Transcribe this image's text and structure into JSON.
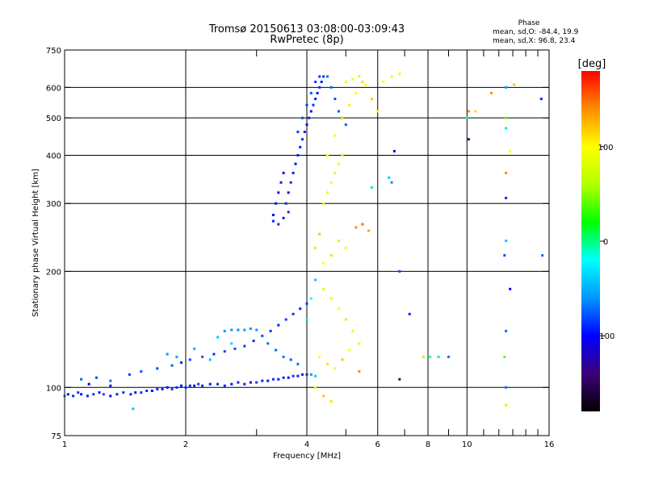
{
  "chart_data": {
    "type": "scatter",
    "title": "Tromsø 20150613 03:08:00-03:09:43",
    "subtitle": "RwPretec (8p)",
    "xlabel": "Frequency [MHz]",
    "ylabel": "Stationary phase Virtual Height [km]",
    "xscale": "log2",
    "yscale": "log",
    "xlim": [
      1,
      16
    ],
    "ylim": [
      75,
      750
    ],
    "xticks": [
      1,
      2,
      4,
      6,
      8,
      10,
      16
    ],
    "xgrid": [
      1,
      2,
      4,
      6,
      8,
      10,
      16
    ],
    "xminor": [
      3,
      5,
      7,
      9,
      11,
      12,
      13,
      14,
      15
    ],
    "yticks": [
      75,
      100,
      200,
      300,
      400,
      500,
      600,
      750
    ],
    "ygrid": [
      100,
      200,
      300,
      400,
      500,
      600
    ],
    "grid": true,
    "phase_stats": {
      "heading": "Phase",
      "line_o": "mean, sd,O: -84.4, 19.9",
      "line_x": "mean, sd,X:  96.8, 23.4"
    },
    "colorbar": {
      "label": "[deg]",
      "range": [
        -180,
        180
      ],
      "ticks": [
        -100,
        0,
        100
      ],
      "colors": [
        "#000000",
        "#3d007a",
        "#0000ff",
        "#0096ff",
        "#00ffff",
        "#00ff00",
        "#b4ff00",
        "#ffff00",
        "#ff8c00",
        "#ff0000"
      ]
    },
    "series": [
      {
        "points": [
          [
            1.02,
            96,
            -95
          ],
          [
            1.05,
            95,
            -90
          ],
          [
            1.08,
            97,
            -85
          ],
          [
            1.1,
            96,
            -100
          ],
          [
            1.14,
            95,
            -92
          ],
          [
            1.18,
            96,
            -88
          ],
          [
            1.22,
            97,
            -95
          ],
          [
            1.25,
            96,
            -80
          ],
          [
            1.3,
            95,
            -98
          ],
          [
            1.35,
            96,
            -90
          ],
          [
            1.4,
            97,
            -86
          ],
          [
            1.46,
            96,
            -92
          ],
          [
            1.5,
            97,
            -95
          ],
          [
            1.55,
            97,
            -84
          ],
          [
            1.6,
            98,
            -90
          ],
          [
            1.65,
            98,
            -96
          ],
          [
            1.7,
            99,
            -88
          ],
          [
            1.75,
            99,
            -93
          ],
          [
            1.8,
            100,
            -97
          ],
          [
            1.85,
            99,
            -85
          ],
          [
            1.9,
            100,
            -91
          ],
          [
            1.95,
            101,
            -95
          ],
          [
            2.0,
            100,
            -88
          ],
          [
            2.05,
            101,
            -92
          ],
          [
            2.1,
            101,
            -96
          ],
          [
            2.15,
            102,
            -84
          ],
          [
            2.2,
            101,
            -90
          ],
          [
            2.3,
            102,
            -94
          ],
          [
            2.4,
            102,
            -87
          ],
          [
            2.5,
            101,
            -93
          ],
          [
            2.6,
            102,
            -95
          ],
          [
            2.7,
            103,
            -89
          ],
          [
            2.8,
            102,
            -92
          ],
          [
            2.9,
            103,
            -96
          ],
          [
            3.0,
            103,
            -85
          ],
          [
            3.1,
            104,
            -91
          ],
          [
            3.2,
            104,
            -95
          ],
          [
            3.3,
            105,
            -88
          ],
          [
            3.4,
            105,
            -93
          ],
          [
            3.5,
            106,
            -90
          ],
          [
            3.6,
            106,
            -96
          ],
          [
            3.7,
            107,
            -86
          ],
          [
            3.8,
            107,
            -92
          ],
          [
            3.9,
            108,
            -95
          ],
          [
            4.0,
            108,
            -89
          ],
          [
            4.1,
            108,
            -60
          ],
          [
            4.2,
            107,
            -40
          ],
          [
            1.1,
            105,
            -75
          ],
          [
            1.2,
            106,
            -80
          ],
          [
            1.3,
            104,
            -70
          ],
          [
            1.45,
            108,
            -85
          ],
          [
            1.55,
            110,
            -78
          ],
          [
            1.7,
            112,
            -82
          ],
          [
            1.85,
            114,
            -76
          ],
          [
            1.95,
            116,
            -88
          ],
          [
            2.05,
            118,
            -80
          ],
          [
            2.2,
            120,
            -74
          ],
          [
            2.35,
            122,
            -86
          ],
          [
            2.5,
            124,
            -82
          ],
          [
            2.65,
            126,
            -78
          ],
          [
            2.8,
            128,
            -84
          ],
          [
            2.95,
            132,
            -90
          ],
          [
            3.1,
            136,
            -80
          ],
          [
            3.25,
            140,
            -86
          ],
          [
            3.4,
            145,
            -92
          ],
          [
            3.55,
            150,
            -84
          ],
          [
            3.7,
            155,
            -88
          ],
          [
            3.85,
            160,
            -92
          ],
          [
            4.0,
            165,
            -86
          ],
          [
            1.8,
            122,
            -60
          ],
          [
            1.9,
            120,
            -55
          ],
          [
            2.1,
            126,
            -50
          ],
          [
            2.3,
            118,
            -45
          ],
          [
            2.5,
            140,
            -60
          ],
          [
            2.6,
            141,
            -58
          ],
          [
            2.7,
            141,
            -62
          ],
          [
            2.8,
            141,
            -55
          ],
          [
            2.9,
            142,
            -60
          ],
          [
            3.0,
            141,
            -58
          ],
          [
            2.4,
            135,
            -40
          ],
          [
            2.6,
            130,
            -35
          ],
          [
            3.2,
            130,
            -70
          ],
          [
            3.35,
            125,
            -72
          ],
          [
            3.5,
            120,
            -68
          ],
          [
            3.65,
            118,
            -74
          ],
          [
            3.8,
            115,
            -70
          ],
          [
            3.3,
            280,
            -100
          ],
          [
            3.35,
            300,
            -95
          ],
          [
            3.4,
            320,
            -98
          ],
          [
            3.45,
            340,
            -92
          ],
          [
            3.5,
            360,
            -96
          ],
          [
            3.55,
            300,
            -90
          ],
          [
            3.6,
            320,
            -94
          ],
          [
            3.65,
            340,
            -88
          ],
          [
            3.7,
            360,
            -92
          ],
          [
            3.75,
            380,
            -96
          ],
          [
            3.8,
            400,
            -90
          ],
          [
            3.85,
            420,
            -94
          ],
          [
            3.9,
            440,
            -88
          ],
          [
            3.95,
            460,
            -92
          ],
          [
            4.0,
            480,
            -96
          ],
          [
            4.05,
            500,
            -90
          ],
          [
            4.1,
            520,
            -94
          ],
          [
            4.15,
            540,
            -88
          ],
          [
            4.2,
            560,
            -92
          ],
          [
            4.25,
            580,
            -96
          ],
          [
            4.3,
            600,
            -90
          ],
          [
            4.35,
            620,
            -94
          ],
          [
            4.4,
            640,
            -88
          ],
          [
            3.3,
            270,
            -92
          ],
          [
            3.4,
            265,
            -88
          ],
          [
            3.5,
            275,
            -95
          ],
          [
            3.6,
            285,
            -90
          ],
          [
            3.8,
            460,
            -85
          ],
          [
            3.9,
            500,
            -80
          ],
          [
            4.0,
            540,
            -82
          ],
          [
            4.1,
            580,
            -78
          ],
          [
            4.2,
            620,
            -84
          ],
          [
            4.3,
            640,
            -86
          ],
          [
            4.5,
            640,
            -70
          ],
          [
            4.6,
            600,
            -75
          ],
          [
            4.7,
            560,
            -80
          ],
          [
            4.8,
            520,
            -74
          ],
          [
            4.9,
            500,
            -70
          ],
          [
            5.0,
            480,
            -76
          ],
          [
            4.4,
            300,
            80
          ],
          [
            4.5,
            320,
            90
          ],
          [
            4.6,
            340,
            95
          ],
          [
            4.7,
            360,
            88
          ],
          [
            4.8,
            380,
            92
          ],
          [
            4.9,
            400,
            85
          ],
          [
            4.5,
            400,
            100
          ],
          [
            4.7,
            450,
            95
          ],
          [
            4.9,
            500,
            110
          ],
          [
            5.1,
            540,
            105
          ],
          [
            5.3,
            580,
            100
          ],
          [
            5.5,
            620,
            110
          ],
          [
            5.0,
            620,
            90
          ],
          [
            5.2,
            630,
            95
          ],
          [
            5.4,
            640,
            105
          ],
          [
            5.6,
            610,
            100
          ],
          [
            5.8,
            560,
            120
          ],
          [
            6.0,
            520,
            95
          ],
          [
            6.2,
            620,
            100
          ],
          [
            6.5,
            640,
            90
          ],
          [
            6.8,
            650,
            85
          ],
          [
            4.6,
            220,
            60
          ],
          [
            4.8,
            240,
            75
          ],
          [
            5.0,
            230,
            90
          ],
          [
            4.2,
            230,
            110
          ],
          [
            4.3,
            250,
            120
          ],
          [
            4.4,
            210,
            100
          ],
          [
            5.3,
            260,
            140
          ],
          [
            5.5,
            265,
            150
          ],
          [
            5.7,
            255,
            130
          ],
          [
            4.4,
            180,
            80
          ],
          [
            4.6,
            170,
            95
          ],
          [
            4.8,
            160,
            100
          ],
          [
            5.0,
            150,
            110
          ],
          [
            5.2,
            140,
            90
          ],
          [
            5.4,
            130,
            105
          ],
          [
            4.3,
            120,
            100
          ],
          [
            4.5,
            115,
            110
          ],
          [
            4.7,
            112,
            95
          ],
          [
            4.9,
            118,
            120
          ],
          [
            5.1,
            125,
            100
          ],
          [
            5.4,
            110,
            140
          ],
          [
            4.2,
            100,
            90
          ],
          [
            4.4,
            95,
            120
          ],
          [
            4.6,
            92,
            110
          ],
          [
            4.0,
            150,
            -30
          ],
          [
            4.1,
            170,
            -20
          ],
          [
            4.2,
            190,
            -40
          ],
          [
            5.8,
            330,
            0
          ],
          [
            6.4,
            350,
            -40
          ],
          [
            6.5,
            340,
            -60
          ],
          [
            6.8,
            200,
            -80
          ],
          [
            7.2,
            155,
            -90
          ],
          [
            7.8,
            120,
            60
          ],
          [
            8.1,
            120,
            -10
          ],
          [
            8.5,
            120,
            -30
          ],
          [
            9.0,
            120,
            -70
          ],
          [
            6.6,
            410,
            -120
          ],
          [
            6.8,
            105,
            -140
          ],
          [
            10.1,
            440,
            -140
          ],
          [
            10.1,
            520,
            140
          ],
          [
            10.0,
            500,
            -10
          ],
          [
            10.5,
            520,
            110
          ],
          [
            11.5,
            580,
            140
          ],
          [
            12.5,
            600,
            -60
          ],
          [
            12.5,
            500,
            40
          ],
          [
            12.5,
            470,
            -30
          ],
          [
            12.8,
            410,
            100
          ],
          [
            12.5,
            360,
            140
          ],
          [
            12.5,
            310,
            -90
          ],
          [
            12.5,
            240,
            -40
          ],
          [
            12.4,
            220,
            -80
          ],
          [
            12.8,
            180,
            -100
          ],
          [
            12.5,
            140,
            -70
          ],
          [
            12.4,
            120,
            40
          ],
          [
            12.5,
            100,
            -70
          ],
          [
            12.5,
            90,
            110
          ],
          [
            13.1,
            610,
            120
          ],
          [
            15.4,
            220,
            -70
          ],
          [
            15.3,
            560,
            -90
          ],
          [
            1.48,
            88,
            -40
          ],
          [
            1.3,
            101,
            -95
          ],
          [
            1.15,
            102,
            -100
          ],
          [
            1.0,
            95,
            -60
          ]
        ]
      }
    ]
  }
}
